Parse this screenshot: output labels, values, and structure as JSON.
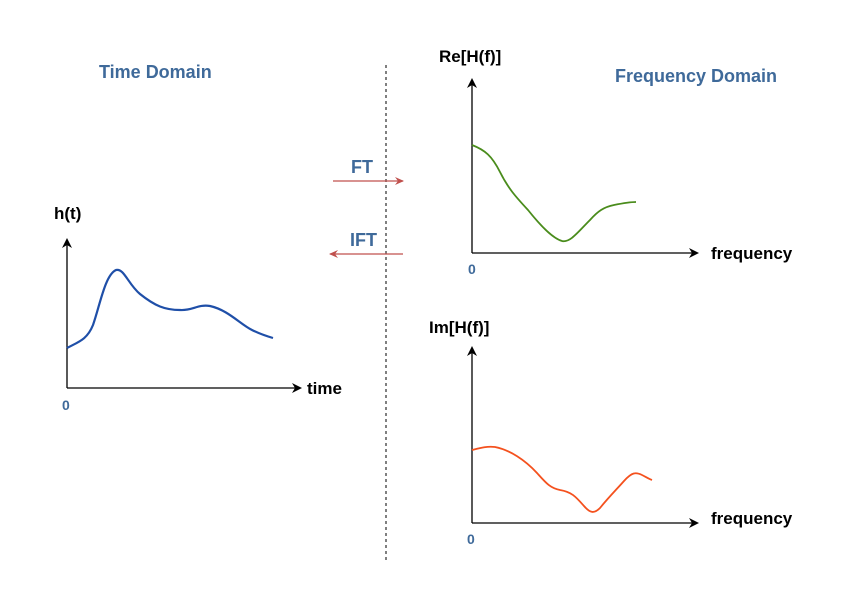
{
  "titles": {
    "time_domain": "Time Domain",
    "frequency_domain": "Frequency Domain"
  },
  "arrows": {
    "forward": "FT",
    "inverse": "IFT"
  },
  "time_plot": {
    "ylabel": "h(t)",
    "xlabel": "time",
    "origin": "0"
  },
  "re_plot": {
    "ylabel": "Re[H(f)]",
    "xlabel": "frequency",
    "origin": "0"
  },
  "im_plot": {
    "ylabel": "Im[H(f)]",
    "xlabel": "frequency",
    "origin": "0"
  },
  "colors": {
    "title": "#3f6a9a",
    "time_curve": "#1f4fa8",
    "re_curve": "#4a8c1c",
    "im_curve": "#f4511e",
    "transform_arrow": "#c0504d"
  }
}
